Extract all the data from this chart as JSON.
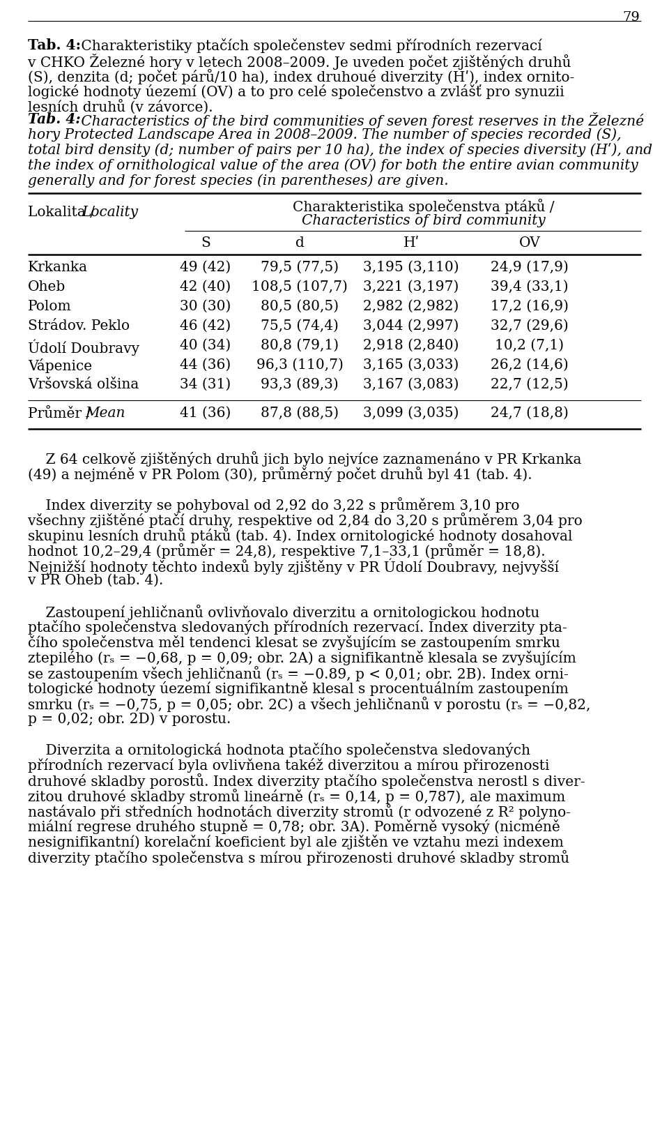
{
  "page_number": "79",
  "bg_color": "#ffffff",
  "text_color": "#000000",
  "table_rows": [
    [
      "Krkanka",
      "49 (42)",
      "79,5 (77,5)",
      "3,195 (3,110)",
      "24,9 (17,9)"
    ],
    [
      "Oheb",
      "42 (40)",
      "108,5 (107,7)",
      "3,221 (3,197)",
      "39,4 (33,1)"
    ],
    [
      "Polom",
      "30 (30)",
      "80,5 (80,5)",
      "2,982 (2,982)",
      "17,2 (16,9)"
    ],
    [
      "Strádov. Peklo",
      "46 (42)",
      "75,5 (74,4)",
      "3,044 (2,997)",
      "32,7 (29,6)"
    ],
    [
      "Údolí Doubravy",
      "40 (34)",
      "80,8 (79,1)",
      "2,918 (2,840)",
      "10,2 (7,1)"
    ],
    [
      "Vápenice",
      "44 (36)",
      "96,3 (110,7)",
      "3,165 (3,033)",
      "26,2 (14,6)"
    ],
    [
      "Vršovská olšina",
      "34 (31)",
      "93,3 (89,3)",
      "3,167 (3,083)",
      "22,7 (12,5)"
    ]
  ],
  "table_mean_row": [
    "Průměr / Mean",
    "41 (36)",
    "87,8 (88,5)",
    "3,099 (3,035)",
    "24,7 (18,8)"
  ]
}
